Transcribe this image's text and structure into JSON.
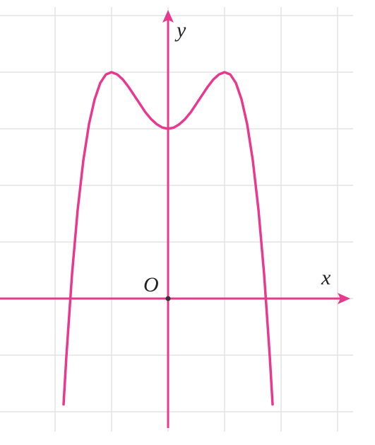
{
  "chart_data": {
    "type": "line",
    "x_label": "x",
    "y_label": "y",
    "origin_label": "O",
    "x": [
      -1.85,
      -1.8,
      -1.7,
      -1.6,
      -1.5,
      -1.4,
      -1.3,
      -1.2,
      -1.1,
      -1.0,
      -0.9,
      -0.8,
      -0.7,
      -0.6,
      -0.5,
      -0.4,
      -0.3,
      -0.2,
      -0.1,
      0,
      0.1,
      0.2,
      0.3,
      0.4,
      0.5,
      0.6,
      0.7,
      0.8,
      0.9,
      1.0,
      1.1,
      1.2,
      1.3,
      1.4,
      1.5,
      1.6,
      1.7,
      1.8,
      1.85
    ],
    "values": [
      -1.87,
      -1.02,
      0.43,
      1.57,
      2.44,
      3.08,
      3.52,
      3.81,
      3.96,
      4,
      3.96,
      3.87,
      3.74,
      3.59,
      3.44,
      3.29,
      3.17,
      3.08,
      3.02,
      3,
      3.02,
      3.08,
      3.17,
      3.29,
      3.44,
      3.59,
      3.74,
      3.87,
      3.96,
      4,
      3.96,
      3.81,
      3.52,
      3.08,
      2.44,
      1.57,
      0.43,
      -1.02,
      -1.87
    ],
    "color": "#e8398e",
    "xlim": [
      -2.975,
      3.6625
    ],
    "ylim": [
      -2.5875,
      5.275
    ],
    "xticks": [
      -2,
      -1,
      0,
      1,
      2,
      3
    ],
    "yticks": [
      -2,
      -1,
      0,
      1,
      2,
      3,
      4,
      5
    ],
    "grid": true,
    "tick_labels": false
  }
}
